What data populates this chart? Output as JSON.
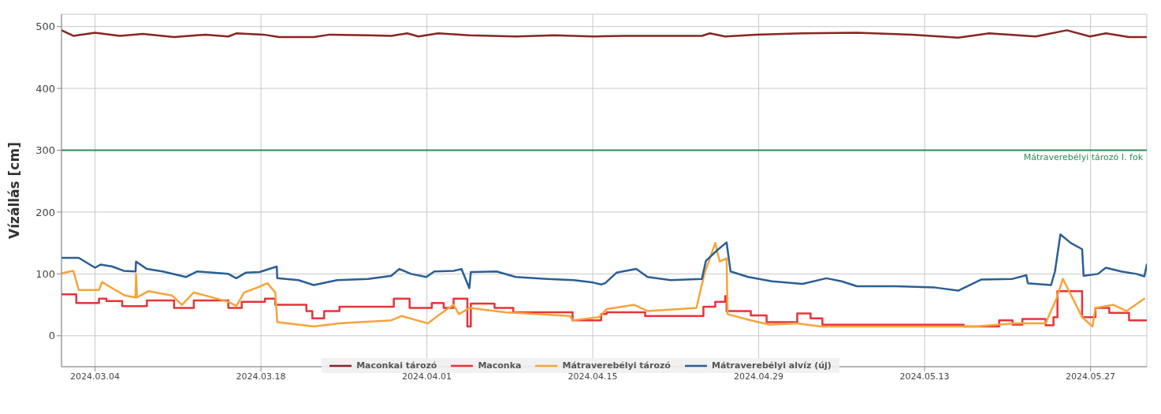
{
  "chart_data": {
    "type": "line",
    "ylabel": "Vízállás [cm]",
    "xlim": [
      "2024-03-01T04:00",
      "2024-05-31T18:00"
    ],
    "xticks": [
      {
        "value": "2024-03-04",
        "label": "2024.03.04"
      },
      {
        "value": "2024-03-18",
        "label": "2024.03.18"
      },
      {
        "value": "2024-04-01",
        "label": "2024.04.01"
      },
      {
        "value": "2024-04-15",
        "label": "2024.04.15"
      },
      {
        "value": "2024-04-29",
        "label": "2024.04.29"
      },
      {
        "value": "2024-05-13",
        "label": "2024.05.13"
      },
      {
        "value": "2024-05-27",
        "label": "2024.05.27"
      }
    ],
    "ylim": [
      -50,
      520
    ],
    "yticks": [
      0,
      100,
      200,
      300,
      400,
      500
    ],
    "grid": true,
    "legend": "bottom",
    "ref_lines": [
      {
        "axis": "y",
        "value": 300,
        "label": "Mátraverebélyi tározó I. fok",
        "color": "#2e8b57"
      }
    ],
    "series": [
      {
        "name": "Maconkai tározó",
        "color": "#8b2323",
        "x": [
          "2024-03-01T04:00",
          "2024-03-02T04:00",
          "2024-03-04T00:00",
          "2024-03-06T02:00",
          "2024-03-08T01:00",
          "2024-03-10T16:00",
          "2024-03-13T07:00",
          "2024-03-15T06:00",
          "2024-03-15T22:00",
          "2024-03-18T05:00",
          "2024-03-19T13:00",
          "2024-03-22T11:00",
          "2024-03-23T19:00",
          "2024-03-27T01:00",
          "2024-03-29T00:00",
          "2024-03-30T08:00",
          "2024-03-31T07:00",
          "2024-04-01T23:00",
          "2024-04-04T14:00",
          "2024-04-08T12:00",
          "2024-04-11T18:00",
          "2024-04-15T01:00",
          "2024-04-17T16:00",
          "2024-04-24T05:00",
          "2024-04-24T21:00",
          "2024-04-26T04:00",
          "2024-04-28T19:00",
          "2024-05-02T17:00",
          "2024-05-07T07:00",
          "2024-05-11T22:00",
          "2024-05-15T20:00",
          "2024-05-18T11:00",
          "2024-05-22T09:00",
          "2024-05-25T00:00",
          "2024-05-26T23:00",
          "2024-05-28T07:00",
          "2024-05-30T06:00",
          "2024-05-31T18:00"
        ],
        "values": [
          494,
          485,
          490,
          485,
          488,
          483,
          487,
          484,
          489,
          487,
          483,
          483,
          487,
          486,
          485,
          489,
          484,
          489,
          486,
          484,
          486,
          484,
          485,
          485,
          489,
          484,
          487,
          489,
          490,
          487,
          482,
          489,
          484,
          494,
          484,
          489,
          483,
          483
        ]
      },
      {
        "name": "Maconka",
        "color": "#e8333a",
        "type": "step",
        "x": [
          "2024-03-01T04:00",
          "2024-03-02T10:00",
          "2024-03-04T08:00",
          "2024-03-04T23:00",
          "2024-03-06T07:00",
          "2024-03-08T09:00",
          "2024-03-10T16:00",
          "2024-03-12T08:00",
          "2024-03-15T06:00",
          "2024-03-16T09:00",
          "2024-03-18T08:00",
          "2024-03-19T05:00",
          "2024-03-21T20:00",
          "2024-03-22T08:00",
          "2024-03-23T08:00",
          "2024-03-24T15:00",
          "2024-03-29T05:00",
          "2024-03-30T13:00",
          "2024-04-01T10:00",
          "2024-04-02T10:00",
          "2024-04-03T06:00",
          "2024-04-04T10:00",
          "2024-04-04T17:00",
          "2024-04-06T17:00",
          "2024-04-08T07:00",
          "2024-04-13T07:00",
          "2024-04-15T17:00",
          "2024-04-16T04:00",
          "2024-04-19T10:00",
          "2024-04-24T08:00",
          "2024-04-25T08:00",
          "2024-04-26T04:00",
          "2024-04-26T07:00",
          "2024-04-28T08:00",
          "2024-04-29T16:00",
          "2024-05-02T06:00",
          "2024-05-03T09:00",
          "2024-05-04T09:00",
          "2024-05-16T07:00",
          "2024-05-19T07:00",
          "2024-05-20T10:00",
          "2024-05-21T06:00",
          "2024-05-23T05:00",
          "2024-05-23T21:00",
          "2024-05-24T05:00",
          "2024-05-26T07:00",
          "2024-05-27T10:00",
          "2024-05-28T14:00",
          "2024-05-30T06:00",
          "2024-05-31T18:00"
        ],
        "values": [
          67,
          53,
          60,
          56,
          48,
          57,
          45,
          57,
          45,
          55,
          60,
          50,
          40,
          28,
          40,
          47,
          60,
          45,
          53,
          45,
          60,
          15,
          52,
          45,
          38,
          25,
          35,
          38,
          32,
          47,
          55,
          64,
          40,
          33,
          22,
          36,
          28,
          18,
          15,
          25,
          18,
          27,
          17,
          30,
          72,
          30,
          45,
          37,
          25,
          25
        ]
      },
      {
        "name": "Mátraverebélyi tározó",
        "color": "#f5a43a",
        "x": [
          "2024-03-01T04:00",
          "2024-03-02T04:00",
          "2024-03-02T15:00",
          "2024-03-04T08:00",
          "2024-03-04T14:00",
          "2024-03-05T15:00",
          "2024-03-06T13:00",
          "2024-03-07T10:00",
          "2024-03-07T11:00",
          "2024-03-07T13:00",
          "2024-03-08T12:00",
          "2024-03-10T12:00",
          "2024-03-11T08:00",
          "2024-03-12T08:00",
          "2024-03-15T06:00",
          "2024-03-15T22:00",
          "2024-03-16T14:00",
          "2024-03-17T17:00",
          "2024-03-18T13:00",
          "2024-03-19T05:00",
          "2024-03-19T09:00",
          "2024-03-22T11:00",
          "2024-03-24T15:00",
          "2024-03-29T00:00",
          "2024-03-29T21:00",
          "2024-04-01T02:00",
          "2024-04-02T03:00",
          "2024-04-03T06:00",
          "2024-04-03T17:00",
          "2024-04-04T14:00",
          "2024-04-07T15:00",
          "2024-04-13T02:00",
          "2024-04-13T07:00",
          "2024-04-15T12:00",
          "2024-04-16T04:00",
          "2024-04-18T12:00",
          "2024-04-19T15:00",
          "2024-04-23T18:00",
          "2024-04-24T10:00",
          "2024-04-25T08:00",
          "2024-04-25T17:00",
          "2024-04-26T07:00",
          "2024-04-26T09:00",
          "2024-04-28T08:00",
          "2024-04-29T22:00",
          "2024-05-02T06:00",
          "2024-05-04T06:00",
          "2024-05-15T20:00",
          "2024-05-17T08:00",
          "2024-05-20T15:00",
          "2024-05-23T05:00",
          "2024-05-24T03:00",
          "2024-05-24T16:00",
          "2024-05-25T11:00",
          "2024-05-26T07:00",
          "2024-05-27T04:00",
          "2024-05-27T10:00",
          "2024-05-28T22:00",
          "2024-05-30T01:00",
          "2024-05-31T13:00"
        ],
        "values": [
          101,
          105,
          74,
          74,
          87,
          75,
          65,
          62,
          100,
          62,
          72,
          65,
          50,
          70,
          55,
          48,
          70,
          78,
          85,
          70,
          22,
          15,
          20,
          25,
          32,
          20,
          35,
          50,
          35,
          45,
          38,
          32,
          25,
          30,
          43,
          50,
          40,
          45,
          100,
          150,
          120,
          125,
          35,
          25,
          18,
          20,
          15,
          15,
          15,
          20,
          20,
          60,
          92,
          62,
          30,
          15,
          45,
          50,
          40,
          60
        ]
      },
      {
        "name": "Mátraverebélyi alvíz (új)",
        "color": "#2a5f95",
        "x": [
          "2024-03-01T04:00",
          "2024-03-02T15:00",
          "2024-03-04T00:00",
          "2024-03-04T11:00",
          "2024-03-05T11:00",
          "2024-03-06T10:00",
          "2024-03-07T10:00",
          "2024-03-07T11:00",
          "2024-03-08T09:00",
          "2024-03-09T17:00",
          "2024-03-11T16:00",
          "2024-03-12T15:00",
          "2024-03-15T06:00",
          "2024-03-15T22:00",
          "2024-03-16T17:00",
          "2024-03-17T21:00",
          "2024-03-19T08:00",
          "2024-03-19T09:00",
          "2024-03-21T04:00",
          "2024-03-22T11:00",
          "2024-03-24T10:00",
          "2024-03-27T01:00",
          "2024-03-29T00:00",
          "2024-03-29T16:00",
          "2024-03-30T16:00",
          "2024-03-31T23:00",
          "2024-04-01T15:00",
          "2024-04-03T06:00",
          "2024-04-03T22:00",
          "2024-04-04T14:00",
          "2024-04-04T17:00",
          "2024-04-06T21:00",
          "2024-04-08T12:00",
          "2024-04-11T03:00",
          "2024-04-13T10:00",
          "2024-04-15T01:00",
          "2024-04-15T17:00",
          "2024-04-16T01:00",
          "2024-04-17T00:00",
          "2024-04-18T16:00",
          "2024-04-19T15:00",
          "2024-04-21T14:00",
          "2024-04-24T05:00",
          "2024-04-24T13:00",
          "2024-04-25T13:00",
          "2024-04-26T07:00",
          "2024-04-26T15:00",
          "2024-04-28T03:00",
          "2024-04-30T03:00",
          "2024-05-02T17:00",
          "2024-05-04T17:00",
          "2024-05-06T00:00",
          "2024-05-07T07:00",
          "2024-05-10T14:00",
          "2024-05-13T21:00",
          "2024-05-15T20:00",
          "2024-05-17T19:00",
          "2024-05-20T10:00",
          "2024-05-21T14:00",
          "2024-05-21T17:00",
          "2024-05-23T16:00",
          "2024-05-24T00:00",
          "2024-05-24T11:00",
          "2024-05-25T08:00",
          "2024-05-26T07:00",
          "2024-05-26T10:00",
          "2024-05-27T15:00",
          "2024-05-28T07:00",
          "2024-05-29T14:00",
          "2024-05-30T21:00",
          "2024-05-31T13:00",
          "2024-05-31T18:00"
        ],
        "values": [
          126,
          126,
          110,
          115,
          112,
          105,
          104,
          120,
          108,
          104,
          95,
          104,
          100,
          93,
          102,
          103,
          112,
          93,
          90,
          82,
          90,
          92,
          97,
          108,
          100,
          95,
          104,
          105,
          108,
          77,
          103,
          104,
          95,
          92,
          90,
          86,
          83,
          85,
          102,
          108,
          95,
          90,
          92,
          121,
          139,
          151,
          104,
          95,
          88,
          84,
          93,
          88,
          80,
          80,
          78,
          73,
          91,
          92,
          98,
          85,
          82,
          104,
          164,
          150,
          140,
          97,
          100,
          110,
          104,
          100,
          96,
          115
        ]
      }
    ]
  }
}
